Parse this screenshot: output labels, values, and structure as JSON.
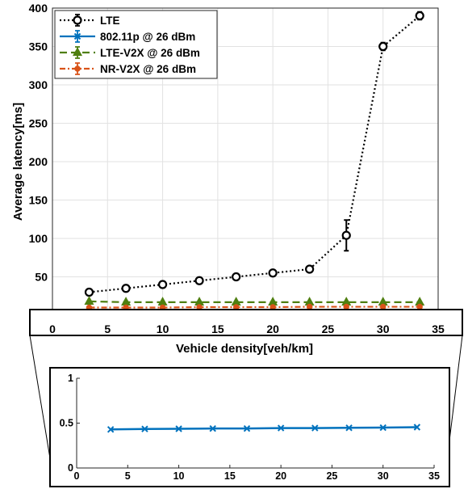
{
  "chart_data": [
    {
      "type": "line",
      "title": "",
      "xlabel": "Vehicle density[veh/km]",
      "ylabel": "Average latency[ms]",
      "xlim": [
        0,
        35
      ],
      "ylim": [
        0,
        400
      ],
      "x_ticks": [
        "0",
        "5",
        "10",
        "15",
        "20",
        "25",
        "30",
        "35"
      ],
      "y_ticks": [
        "0",
        "50",
        "100",
        "150",
        "200",
        "250",
        "300",
        "350",
        "400"
      ],
      "grid": true,
      "legend_position": "top-left",
      "x": [
        3.33,
        6.67,
        10,
        13.33,
        16.67,
        20,
        23.33,
        26.67,
        30,
        33.33
      ],
      "series": [
        {
          "name": "LTE",
          "color": "#000000",
          "line_style": "dotted",
          "marker": "circle",
          "values": [
            30,
            35,
            40,
            45,
            50,
            55,
            60,
            104,
            350,
            390
          ],
          "error": [
            0,
            0,
            0,
            0,
            0,
            0,
            0,
            20,
            5,
            5
          ]
        },
        {
          "name": "802.11p @ 26 dBm",
          "color": "#0072bd",
          "line_style": "solid",
          "marker": "x",
          "values": [
            0.43,
            0.435,
            0.437,
            0.44,
            0.44,
            0.445,
            0.445,
            0.448,
            0.45,
            0.455
          ],
          "error": [
            0,
            0,
            0,
            0,
            0,
            0,
            0,
            0,
            0,
            0
          ]
        },
        {
          "name": "LTE-V2X @ 26 dBm",
          "color": "#4f7f10",
          "line_style": "dashed",
          "marker": "triangle",
          "values": [
            18,
            17,
            17,
            17,
            17,
            17,
            17,
            17,
            17,
            17
          ],
          "error": [
            0,
            0,
            0,
            0,
            0,
            0,
            0,
            0,
            0,
            0
          ]
        },
        {
          "name": "NR-V2X @ 26 dBm",
          "color": "#d95319",
          "line_style": "dashdot",
          "marker": "circle-filled",
          "values": [
            10,
            10,
            10,
            10.5,
            10.5,
            10.5,
            11,
            11,
            11,
            11
          ],
          "error": [
            0,
            0,
            0,
            0,
            0,
            0,
            0,
            0,
            0,
            0
          ]
        }
      ]
    },
    {
      "type": "line",
      "title": "",
      "xlabel": "",
      "ylabel": "",
      "xlim": [
        0,
        35
      ],
      "ylim": [
        0,
        1
      ],
      "x_ticks": [
        "0",
        "5",
        "10",
        "15",
        "20",
        "25",
        "30",
        "35"
      ],
      "y_ticks": [
        "0",
        "0.5",
        "1"
      ],
      "grid": false,
      "x": [
        3.33,
        6.67,
        10,
        13.33,
        16.67,
        20,
        23.33,
        26.67,
        30,
        33.33
      ],
      "series": [
        {
          "name": "802.11p @ 26 dBm",
          "color": "#0072bd",
          "line_style": "solid",
          "marker": "x",
          "values": [
            0.43,
            0.435,
            0.437,
            0.44,
            0.44,
            0.445,
            0.445,
            0.448,
            0.45,
            0.455
          ]
        }
      ]
    }
  ]
}
